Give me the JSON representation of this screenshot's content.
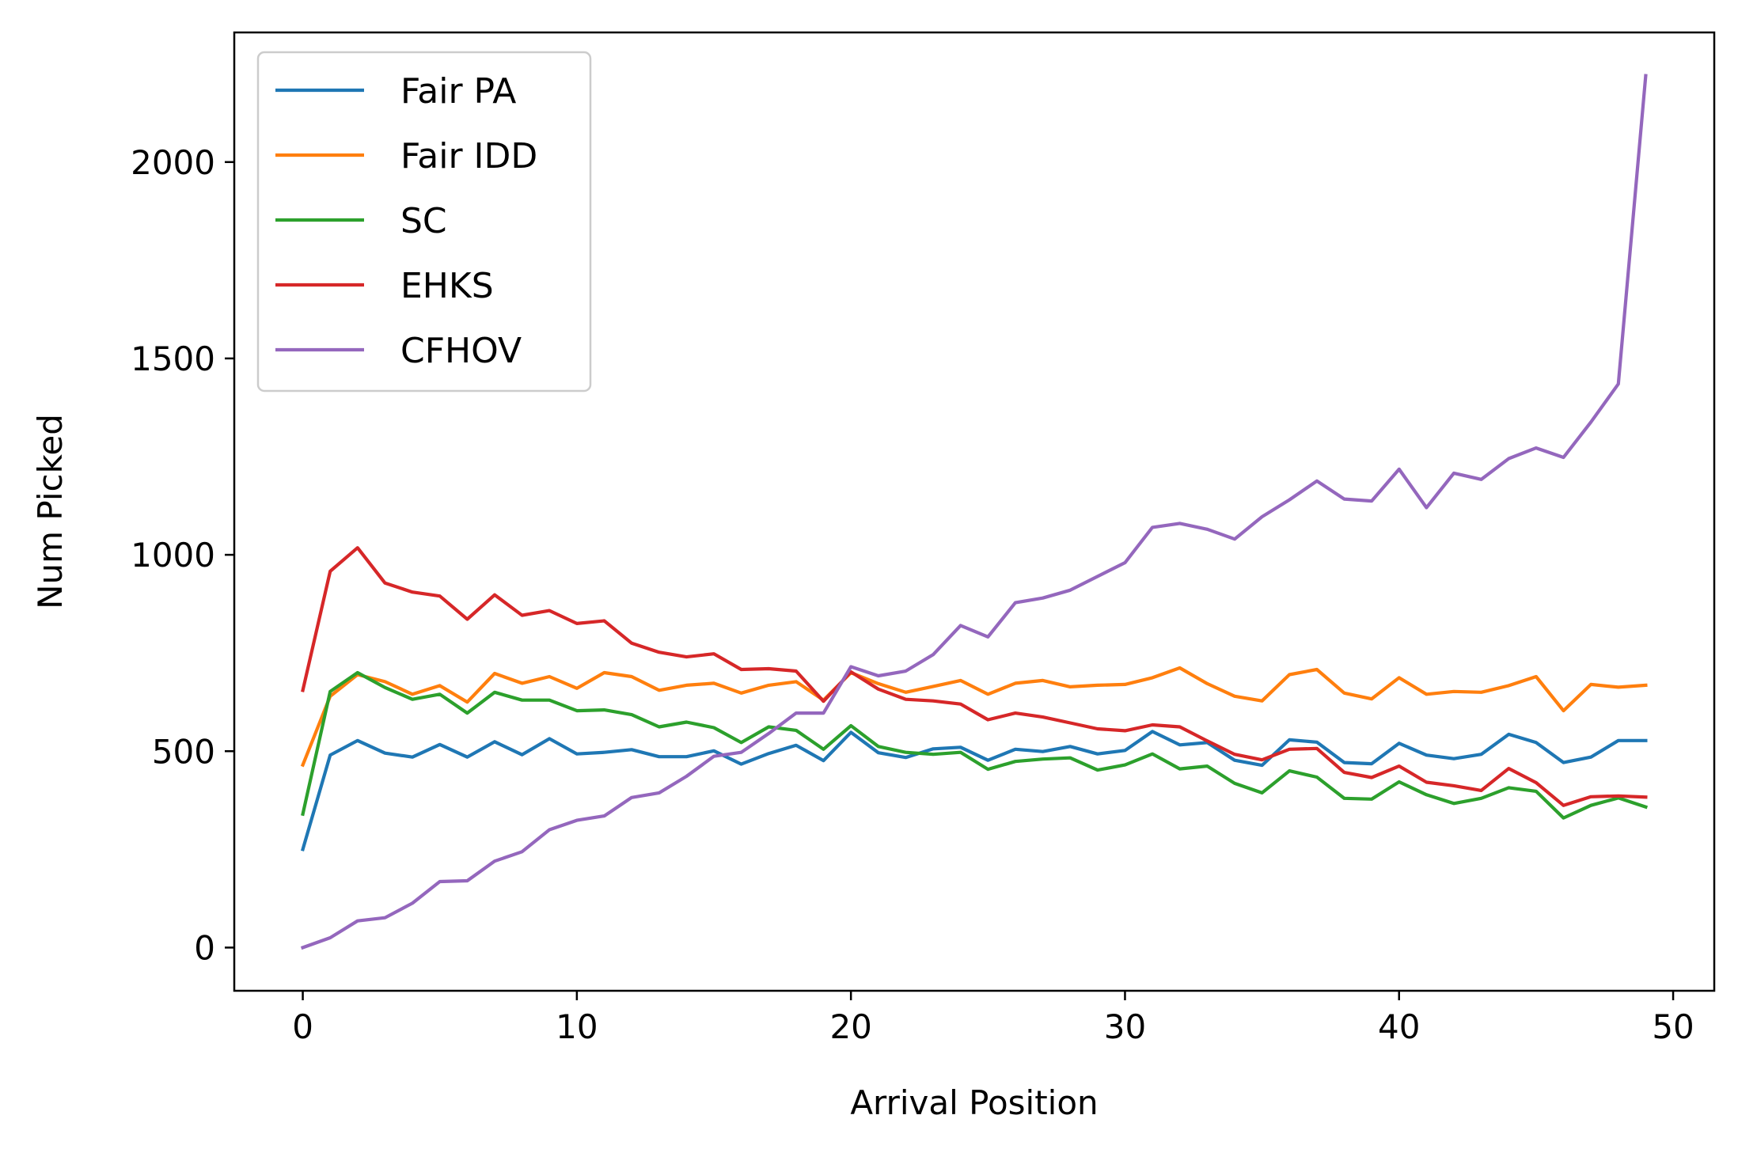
{
  "chart_data": {
    "type": "line",
    "title": "",
    "xlabel": "Arrival Position",
    "ylabel": "Num Picked",
    "xlim": [
      -2.5,
      51.5
    ],
    "ylim": [
      -110,
      2330
    ],
    "xticks": [
      0,
      10,
      20,
      30,
      40,
      50
    ],
    "yticks": [
      0,
      500,
      1000,
      1500,
      2000
    ],
    "grid": false,
    "legend": "top-left",
    "x": [
      0,
      1,
      2,
      3,
      4,
      5,
      6,
      7,
      8,
      9,
      10,
      11,
      12,
      13,
      14,
      15,
      16,
      17,
      18,
      19,
      20,
      21,
      22,
      23,
      24,
      25,
      26,
      27,
      28,
      29,
      30,
      31,
      32,
      33,
      34,
      35,
      36,
      37,
      38,
      39,
      40,
      41,
      42,
      43,
      44,
      45,
      46,
      47,
      48,
      49
    ],
    "series": [
      {
        "name": "Fair PA",
        "color": "#1f77b4",
        "values": [
          250,
          490,
          527,
          495,
          485,
          517,
          485,
          524,
          491,
          532,
          493,
          497,
          504,
          486,
          486,
          501,
          467,
          494,
          515,
          476,
          548,
          496,
          484,
          506,
          510,
          477,
          505,
          499,
          512,
          493,
          502,
          550,
          516,
          522,
          477,
          464,
          529,
          523,
          471,
          468,
          520,
          490,
          481,
          492,
          543,
          522,
          471,
          485,
          527,
          527
        ]
      },
      {
        "name": "Fair IDD",
        "color": "#ff7f0e",
        "values": [
          465,
          640,
          695,
          677,
          645,
          667,
          625,
          698,
          673,
          690,
          660,
          700,
          690,
          655,
          668,
          673,
          648,
          668,
          677,
          630,
          700,
          672,
          650,
          665,
          680,
          645,
          673,
          680,
          664,
          668,
          670,
          687,
          712,
          672,
          640,
          628,
          695,
          708,
          648,
          633,
          687,
          645,
          652,
          650,
          667,
          690,
          603,
          670,
          663,
          668
        ]
      },
      {
        "name": "SC",
        "color": "#2ca02c",
        "values": [
          340,
          652,
          700,
          662,
          632,
          645,
          597,
          650,
          630,
          630,
          603,
          605,
          593,
          562,
          574,
          560,
          522,
          562,
          553,
          505,
          565,
          512,
          497,
          492,
          497,
          454,
          474,
          480,
          483,
          452,
          465,
          493,
          455,
          462,
          418,
          394,
          450,
          434,
          380,
          378,
          422,
          389,
          367,
          380,
          407,
          398,
          330,
          362,
          381,
          358
        ]
      },
      {
        "name": "EHKS",
        "color": "#d62728",
        "values": [
          655,
          958,
          1018,
          928,
          905,
          895,
          836,
          898,
          846,
          858,
          825,
          832,
          775,
          752,
          740,
          748,
          708,
          710,
          704,
          627,
          702,
          658,
          632,
          628,
          620,
          580,
          597,
          587,
          572,
          557,
          552,
          567,
          562,
          526,
          492,
          478,
          505,
          507,
          446,
          433,
          462,
          421,
          412,
          400,
          456,
          420,
          362,
          384,
          386,
          383
        ]
      },
      {
        "name": "CFHOV",
        "color": "#9467bd",
        "values": [
          0,
          25,
          68,
          76,
          113,
          168,
          170,
          220,
          244,
          300,
          324,
          335,
          382,
          394,
          436,
          487,
          497,
          545,
          597,
          597,
          715,
          692,
          704,
          746,
          820,
          791,
          878,
          890,
          910,
          945,
          980,
          1070,
          1080,
          1065,
          1040,
          1097,
          1140,
          1188,
          1142,
          1137,
          1218,
          1120,
          1208,
          1192,
          1245,
          1272,
          1248,
          1338,
          1435,
          2220
        ]
      }
    ]
  }
}
